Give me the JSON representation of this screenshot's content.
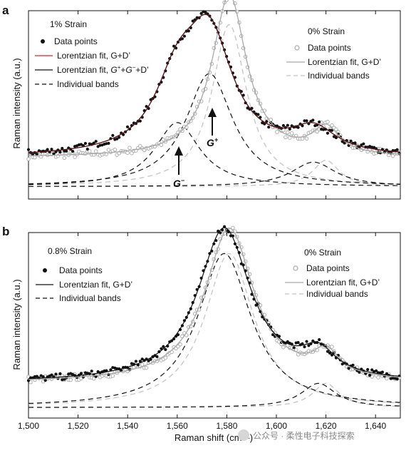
{
  "figure": {
    "xlabel": "Raman shift (cm⁻¹)",
    "ylabel": "Raman intensity (a.u.)",
    "x_ticks": [
      "1,500",
      "1,520",
      "1,540",
      "1,560",
      "1,580",
      "1,600",
      "1,620",
      "1,640"
    ],
    "watermark": "公众号 · 柔性电子科技探索"
  },
  "colors": {
    "black": "#111111",
    "gray": "#a8a8a8",
    "light_gray": "#c4c4c4",
    "red": "#d9262c"
  },
  "chart_data": [
    {
      "type": "scatter",
      "panel_label": "a",
      "xlim": [
        1500,
        1650
      ],
      "ylim": [
        0,
        1
      ],
      "legend_left": {
        "heading": "1% Strain",
        "items": [
          {
            "label": "Data points",
            "style": "black-dot"
          },
          {
            "label": "Lorentzian fit, G+D’",
            "style": "red-line"
          },
          {
            "label_parts": [
              "Lorentzian fit, ",
              "G",
              "+",
              "+",
              "G",
              "−",
              "+D’"
            ],
            "style": "black-line"
          },
          {
            "label": "Individual bands",
            "style": "black-dash"
          }
        ]
      },
      "legend_right": {
        "heading": "0% Strain",
        "items": [
          {
            "label": "Data points",
            "style": "gray-circle"
          },
          {
            "label": "Lorentzian fit, G+D’",
            "style": "gray-line"
          },
          {
            "label": "Individual bands",
            "style": "gray-dash"
          }
        ]
      },
      "annotations": [
        {
          "text": "G",
          "sup": "−",
          "x": 1560
        },
        {
          "text": "G",
          "sup": "+",
          "x": 1573
        }
      ],
      "series": [
        {
          "name": "1% Strain",
          "baseline": 0.22,
          "bands": [
            {
              "x0": 1560,
              "w": 22,
              "a": 0.34
            },
            {
              "x0": 1573,
              "w": 23,
              "a": 0.6
            },
            {
              "x0": 1615,
              "w": 22,
              "a": 0.13
            }
          ]
        },
        {
          "name": "0% Strain",
          "baseline": 0.22,
          "bands": [
            {
              "x0": 1581,
              "w": 17,
              "a": 0.86
            },
            {
              "x0": 1620,
              "w": 13,
              "a": 0.14
            }
          ]
        }
      ]
    },
    {
      "type": "scatter",
      "panel_label": "b",
      "xlim": [
        1500,
        1650
      ],
      "ylim": [
        0,
        1
      ],
      "legend_left": {
        "heading": "0.8% Strain",
        "items": [
          {
            "label": "Data points",
            "style": "black-dot"
          },
          {
            "label": "Lorentzian fit, G+D’",
            "style": "black-line"
          },
          {
            "label": "Individual bands",
            "style": "black-dash"
          }
        ]
      },
      "legend_right": {
        "heading": "0% Strain",
        "items": [
          {
            "label": "Data points",
            "style": "gray-circle"
          },
          {
            "label": "Lorentzian fit, G+D’",
            "style": "gray-line"
          },
          {
            "label": "Individual bands",
            "style": "gray-dash"
          }
        ]
      },
      "series": [
        {
          "name": "0.8% Strain",
          "baseline": 0.19,
          "bands": [
            {
              "x0": 1579,
              "w": 26,
              "a": 0.83
            },
            {
              "x0": 1617,
              "w": 17,
              "a": 0.13
            }
          ]
        },
        {
          "name": "0% Strain",
          "baseline": 0.19,
          "bands": [
            {
              "x0": 1581,
              "w": 24,
              "a": 0.83
            },
            {
              "x0": 1620,
              "w": 13,
              "a": 0.13
            }
          ]
        }
      ]
    }
  ]
}
